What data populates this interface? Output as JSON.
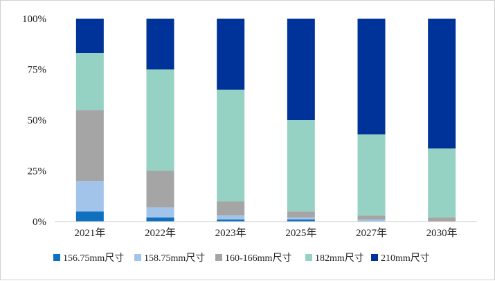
{
  "chart_data": {
    "type": "bar",
    "stacked": true,
    "categories": [
      "2021年",
      "2022年",
      "2023年",
      "2025年",
      "2027年",
      "2030年"
    ],
    "series": [
      {
        "name": "156.75mm尺寸",
        "color": "#0f70c0",
        "values": [
          5,
          2,
          1,
          1,
          0,
          0
        ]
      },
      {
        "name": "158.75mm尺寸",
        "color": "#a3c4ea",
        "values": [
          15,
          5,
          2,
          1,
          1,
          0
        ]
      },
      {
        "name": "160-166mm尺寸",
        "color": "#a5a5a5",
        "values": [
          35,
          18,
          7,
          3,
          2,
          2
        ]
      },
      {
        "name": "182mm尺寸",
        "color": "#96d2c3",
        "values": [
          28,
          50,
          55,
          45,
          40,
          34
        ]
      },
      {
        "name": "210mm尺寸",
        "color": "#003399",
        "values": [
          17,
          25,
          35,
          50,
          57,
          64
        ]
      }
    ],
    "yticks": [
      "0%",
      "25%",
      "50%",
      "75%",
      "100%"
    ],
    "ylim": [
      0,
      100
    ],
    "grid": false,
    "legend_position": "bottom"
  }
}
